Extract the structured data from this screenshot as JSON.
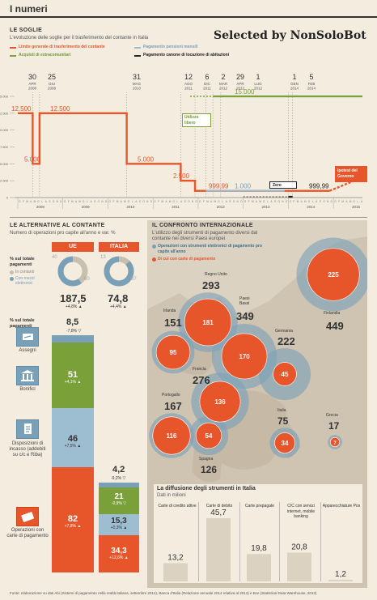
{
  "header": {
    "title": "I numeri"
  },
  "watermark": "Selected by NonSoloBot",
  "soglie": {
    "title": "LE SOGLIE",
    "subtitle": "L'evoluzione delle soglie per il trasferimento del contante in Italia",
    "legend": [
      {
        "label": "Limite generale di trasferimento del contante",
        "color": "#e6562a"
      },
      {
        "label": "Pagamento pensioni mensili",
        "color": "#9dbdd0"
      },
      {
        "label": "Acquisti di extracomunitari",
        "color": "#7aa03a"
      },
      {
        "label": "Pagamento canone di locazione di abitazioni",
        "color": "#222222"
      }
    ],
    "dates": [
      {
        "d": "30",
        "m": "APR",
        "y": "2008"
      },
      {
        "d": "25",
        "m": "GIU",
        "y": "2008"
      },
      {
        "d": "31",
        "m": "MAG",
        "y": "2010"
      },
      {
        "d": "12",
        "m": "AGO",
        "y": "2011"
      },
      {
        "d": "6",
        "m": "DIC",
        "y": "2011"
      },
      {
        "d": "2",
        "m": "MAR",
        "y": "2012"
      },
      {
        "d": "29",
        "m": "APR",
        "y": "2012"
      },
      {
        "d": "1",
        "m": "LUG",
        "y": "2012"
      },
      {
        "d": "1",
        "m": "GEN",
        "y": "2014"
      },
      {
        "d": "5",
        "m": "FEB",
        "y": "2014"
      }
    ],
    "yticks": [
      "15.000",
      "12.500",
      "10.000",
      "7.500",
      "5.000",
      "2.500",
      "0"
    ],
    "years": [
      "2008",
      "2009",
      "2010",
      "2011",
      "2012",
      "2013",
      "2014",
      "2015"
    ],
    "months_label": "GFMAMGLASOND",
    "annotations": {
      "utilizzo": "Utilizzo libero",
      "zero": "Zero",
      "ipotesi": "Ipotesi del Governo"
    }
  },
  "chart_data": [
    {
      "type": "line",
      "title": "LE SOGLIE",
      "subtitle": "L'evoluzione delle soglie per il trasferimento del contante in Italia",
      "xlabel": "",
      "ylabel": "",
      "ylim": [
        0,
        15000
      ],
      "grid": false,
      "legend": "top-left",
      "series": [
        {
          "name": "Limite generale di trasferimento del contante",
          "points": [
            {
              "x": "2008-01",
              "y": 12500
            },
            {
              "x": "2008-04-30",
              "y": 5000
            },
            {
              "x": "2008-06-25",
              "y": 12500
            },
            {
              "x": "2010-05-31",
              "y": 5000
            },
            {
              "x": "2011-08-12",
              "y": 2500
            },
            {
              "x": "2011-12-06",
              "y": 999.99
            },
            {
              "x": "2014-12",
              "y": 999.99
            },
            {
              "x": "2015",
              "y": 3000
            }
          ],
          "labels": [
            "12.500",
            "5.000",
            "12.500",
            "5.000",
            "2.500",
            "999,99",
            "999,99",
            "3.000"
          ]
        },
        {
          "name": "Pagamento pensioni mensili",
          "points": [
            {
              "x": "2012-03-02",
              "y": 1000
            },
            {
              "x": "2013-12",
              "y": 1000
            }
          ],
          "labels": [
            "1.000"
          ]
        },
        {
          "name": "Acquisti di extracomunitari",
          "points": [
            {
              "x": "2012-04-29",
              "y": 15000
            },
            {
              "x": "2015",
              "y": 15000
            }
          ],
          "labels": [
            "15.000"
          ]
        },
        {
          "name": "Pagamento canone di locazione di abitazioni",
          "points": [
            {
              "x": "2014-01-01",
              "y": 0
            },
            {
              "x": "2014-02-05",
              "y": 0
            }
          ],
          "labels": []
        }
      ]
    },
    {
      "type": "bar",
      "title": "LE ALTERNATIVE AL CONTANTE",
      "subtitle": "Numero di operazioni pro capite all'anno e var. %",
      "categories": [
        "Assegni",
        "Bonifici",
        "Disposizioni di incasso (addebiti su c/c e Riba)",
        "Operazioni con carte di pagamento"
      ],
      "series": [
        {
          "name": "UE",
          "values": [
            8.5,
            51,
            46,
            82
          ],
          "changes": [
            "-7,8%",
            "+4,1%",
            "+7,5%",
            "+7,8%"
          ],
          "total": 187.5,
          "total_change": "+4,8%",
          "donut": {
            "in_contanti": 40,
            "con_mezzi_elettronici": 60
          }
        },
        {
          "name": "ITALIA",
          "values": [
            4.2,
            21,
            15.3,
            34.3
          ],
          "changes": [
            "-9,2%",
            "-0,9%",
            "+0,3%",
            "+12,6%"
          ],
          "total": 74.8,
          "total_change": "+4,4%",
          "donut": {
            "in_contanti": 13,
            "con_mezzi_elettronici": 87
          }
        }
      ]
    },
    {
      "type": "scatter",
      "title": "IL CONFRONTO INTERNAZIONALE",
      "subtitle": "L'utilizzo degli strumenti di pagamento diversi dal contante nei diversi Paesi europei",
      "series": [
        {
          "name": "Operazioni con strumenti elettronici di pagamento pro capite all'anno",
          "values": {
            "Finlandia": 449,
            "Paesi Bassi": 349,
            "Regno Unito": 293,
            "Francia": 276,
            "Germania": 222,
            "Portogallo": 167,
            "Irlanda": 151,
            "Spagna": 126,
            "Italia": 75,
            "Grecia": 17
          }
        },
        {
          "name": "Di cui con carte di pagamento",
          "values": {
            "Finlandia": 225,
            "Regno Unito": 181,
            "Paesi Bassi": 170,
            "Francia": 136,
            "Portogallo": 116,
            "Irlanda": 95,
            "Spagna": 54,
            "Germania": 45,
            "Italia": 34,
            "Grecia": 7
          }
        }
      ]
    },
    {
      "type": "bar",
      "title": "La diffusione degli strumenti in Italia",
      "subtitle": "Dati in milioni",
      "categories": [
        "Carte di credito attive",
        "Carte di debito",
        "Carte prepagate",
        "C/C con servizi internet, mobile banking",
        "Apparecchiature Pos"
      ],
      "values": [
        13.2,
        45.7,
        19.8,
        20.8,
        1.2
      ],
      "labels": [
        "13,2",
        "45,7",
        "19,8",
        "20,8",
        "1,2"
      ]
    }
  ],
  "alternative": {
    "title": "LE ALTERNATIVE AL CONTANTE",
    "subtitle": "Numero di operazioni pro capite all'anno e var. %",
    "ue": "UE",
    "italia": "ITALIA",
    "donut_legend": {
      "title": "% sul totale pagamenti",
      "cash": "In contanti",
      "electronic": "Con mezzi elettronici"
    },
    "donut_ue": {
      "cash": "40",
      "elec": "60"
    },
    "donut_it": {
      "cash": "13",
      "elec": "87"
    },
    "total_ue": "187,5",
    "total_ue_change": "+4,8% ▲",
    "total_it": "74,8",
    "total_it_change": "+4,4% ▲",
    "rows_label_top": "% sul totale pagamenti",
    "rows": [
      {
        "label": "Assegni",
        "ue": "8,5",
        "ue_c": "-7,8% ▽",
        "it": "4,2",
        "it_c": "-9,2% ▽"
      },
      {
        "label": "Bonifici",
        "ue": "51",
        "ue_c": "+4,1% ▲",
        "it": "21",
        "it_c": "-0,9% ▽"
      },
      {
        "label": "Disposizioni di incasso (addebiti su c/c e Riba)",
        "ue": "46",
        "ue_c": "+7,5% ▲",
        "it": "15,3",
        "it_c": "+0,3% ▲"
      },
      {
        "label": "Operazioni con carte di pagamento",
        "ue": "82",
        "ue_c": "+7,8% ▲",
        "it": "34,3",
        "it_c": "+12,6% ▲"
      }
    ]
  },
  "confronto": {
    "title": "IL CONFRONTO INTERNAZIONALE",
    "subtitle": "L'utilizzo degli strumenti di pagamento diversi dal contante nei diversi Paesi europei",
    "legend_elec": "Operazioni con strumenti elettronici di pagamento pro capite all'anno",
    "legend_cards": "Di cui con carte di pagamento",
    "countries": [
      {
        "name": "Regno Unito",
        "total": "293",
        "cards": "181"
      },
      {
        "name": "Paesi Bassi",
        "total": "349",
        "cards": "170"
      },
      {
        "name": "Irlanda",
        "total": "151",
        "cards": "95"
      },
      {
        "name": "Germania",
        "total": "222",
        "cards": "45"
      },
      {
        "name": "Finlandia",
        "total": "449",
        "cards": "225"
      },
      {
        "name": "Francia",
        "total": "276",
        "cards": "136"
      },
      {
        "name": "Portogallo",
        "total": "167",
        "cards": "116"
      },
      {
        "name": "Spagna",
        "total": "126",
        "cards": "54"
      },
      {
        "name": "Italia",
        "total": "75",
        "cards": "34"
      },
      {
        "name": "Grecia",
        "total": "17",
        "cards": "7"
      }
    ]
  },
  "diffusione": {
    "title": "La diffusione degli strumenti in Italia",
    "subtitle": "Dati in milioni",
    "items": [
      {
        "label": "Carte di credito attive",
        "value": "13,2"
      },
      {
        "label": "Carte di debito",
        "value": "45,7"
      },
      {
        "label": "Carte prepagate",
        "value": "19,8"
      },
      {
        "label": "C/C con servizi internet, mobile banking",
        "value": "20,8"
      },
      {
        "label": "Apparecchiature Pos",
        "value": "1,2"
      }
    ]
  },
  "footer": "Fonte: elaborazione su dati Abi (Sistemi di pagamento nella realtà italiana, settembre 2014), Banca d'Italia (Relazione annuale 2014 relativa al 2013) e Bce (Statistical Data Warehouse, 2013)",
  "colors": {
    "orange": "#e6562a",
    "green": "#7aa03a",
    "blue": "#7aa0b8",
    "lightblue": "#9dbdd0",
    "bg": "#f3ecdf",
    "dark": "#333333"
  }
}
